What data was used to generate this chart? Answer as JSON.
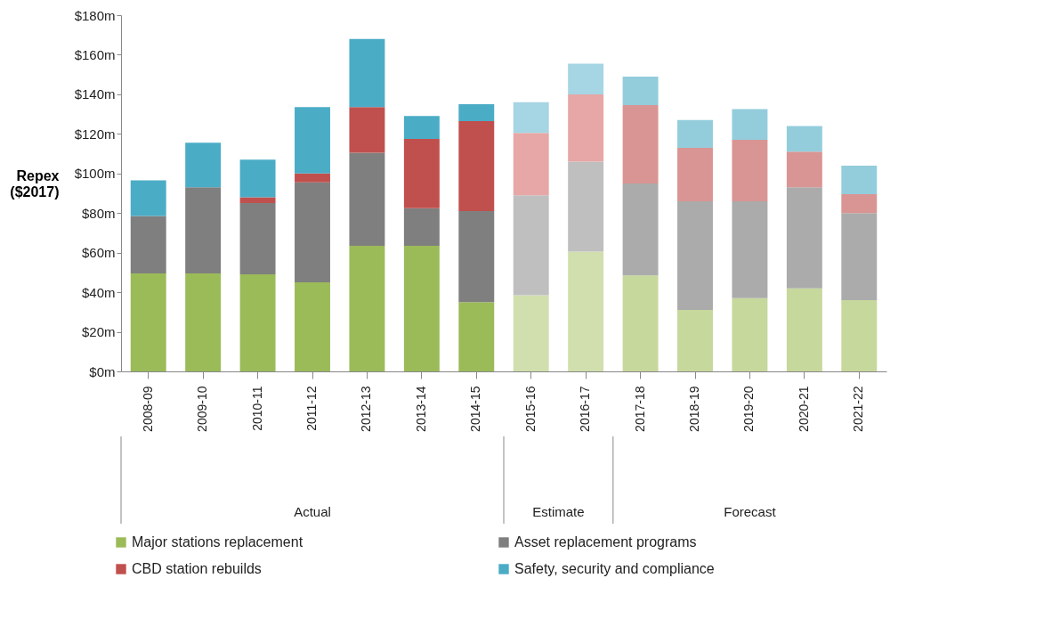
{
  "chart_data": {
    "type": "bar",
    "stacked": true,
    "ylabel": "Repex ($2017)",
    "categories": [
      "2008-09",
      "2009-10",
      "2010-11",
      "2011-12",
      "2012-13",
      "2013-14",
      "2014-15",
      "2015-16",
      "2016-17",
      "2017-18",
      "2018-19",
      "2019-20",
      "2020-21",
      "2021-22"
    ],
    "series": [
      {
        "name": "Major stations replacement",
        "color": "#9bbb59",
        "colors": [
          "#9bbb59",
          "#9bbb59",
          "#9bbb59",
          "#9bbb59",
          "#9bbb59",
          "#9bbb59",
          "#9bbb59",
          "#d0dfad",
          "#d0dfad",
          "#c6d89c",
          "#c6d89c",
          "#c6d89c",
          "#c6d89c",
          "#c6d89c"
        ],
        "values": [
          49.5,
          49.5,
          49,
          45,
          63.5,
          63.5,
          35,
          38.5,
          60.5,
          48.5,
          31,
          37,
          42,
          36
        ]
      },
      {
        "name": "Asset replacement programs",
        "color": "#7f7f7f",
        "colors": [
          "#7f7f7f",
          "#7f7f7f",
          "#7f7f7f",
          "#7f7f7f",
          "#7f7f7f",
          "#7f7f7f",
          "#7f7f7f",
          "#bfbfbf",
          "#bfbfbf",
          "#ababab",
          "#ababab",
          "#ababab",
          "#ababab",
          "#ababab"
        ],
        "values": [
          29,
          43.5,
          36,
          50.5,
          47,
          19,
          46,
          50.5,
          45.5,
          46.5,
          55,
          49,
          51,
          44
        ]
      },
      {
        "name": "CBD station rebuilds",
        "color": "#c0504d",
        "colors": [
          "#c0504d",
          "#c0504d",
          "#c0504d",
          "#c0504d",
          "#c0504d",
          "#c0504d",
          "#c0504d",
          "#e6a7a6",
          "#e6a7a6",
          "#d99593",
          "#d99593",
          "#d99593",
          "#d99593",
          "#d99593"
        ],
        "values": [
          0,
          0,
          3,
          4.5,
          23,
          35,
          45.5,
          31.5,
          34,
          39.5,
          27,
          31,
          18,
          9.5
        ]
      },
      {
        "name": "Safety, security and compliance",
        "color": "#4bacc6",
        "colors": [
          "#4bacc6",
          "#4bacc6",
          "#4bacc6",
          "#4bacc6",
          "#4bacc6",
          "#4bacc6",
          "#4bacc6",
          "#a6d5e3",
          "#a6d5e3",
          "#93cddc",
          "#93cddc",
          "#93cddc",
          "#93cddc",
          "#93cddc"
        ],
        "values": [
          18,
          22.5,
          19,
          33.5,
          34.5,
          11.5,
          8.5,
          15.5,
          15.5,
          14.5,
          14,
          15.5,
          13,
          14.5
        ]
      }
    ],
    "ylim": [
      0,
      180
    ],
    "yticks": [
      {
        "value": 0,
        "label": "$0m"
      },
      {
        "value": 20,
        "label": "$20m"
      },
      {
        "value": 40,
        "label": "$40m"
      },
      {
        "value": 60,
        "label": "$60m"
      },
      {
        "value": 80,
        "label": "$80m"
      },
      {
        "value": 100,
        "label": "$100m"
      },
      {
        "value": 120,
        "label": "$120m"
      },
      {
        "value": 140,
        "label": "$140m"
      },
      {
        "value": 160,
        "label": "$160m"
      },
      {
        "value": 180,
        "label": "$180m"
      }
    ],
    "annotations": [
      "Actual",
      "Estimate",
      "Forecast"
    ],
    "grid": false,
    "legend": "bottom"
  }
}
